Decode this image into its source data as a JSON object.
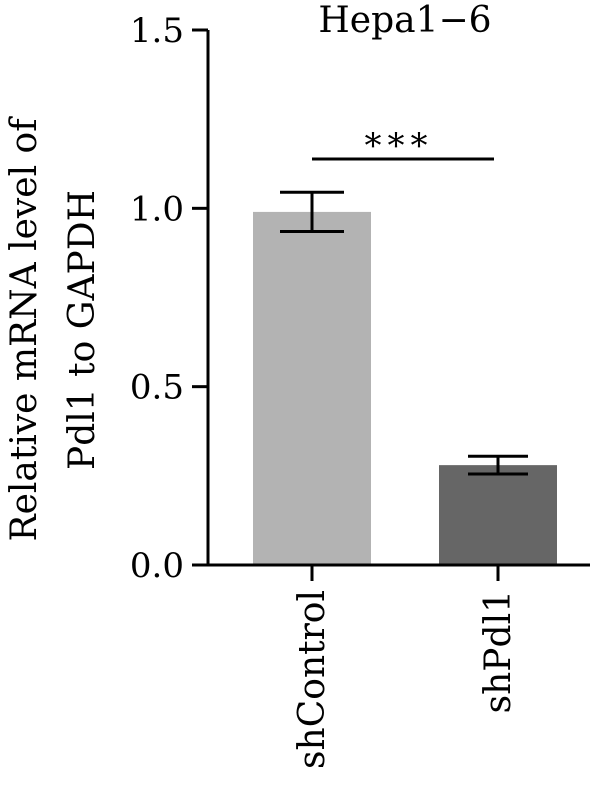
{
  "chart_data": {
    "type": "bar",
    "title": "Hepa1−6",
    "ylabel_lines": [
      "Relative mRNA level of",
      "Pdl1 to GAPDH"
    ],
    "xlabel": "",
    "categories": [
      "shControl",
      "shPdl1"
    ],
    "values": [
      0.99,
      0.28
    ],
    "error": [
      0.055,
      0.025
    ],
    "colors": [
      "#b3b3b3",
      "#666666"
    ],
    "ylim": [
      0,
      1.5
    ],
    "yticks": [
      "0.0",
      "0.5",
      "1.0",
      "1.5"
    ],
    "yticks_values": [
      0,
      0.5,
      1.0,
      1.5
    ],
    "significance": {
      "label": "***",
      "between": [
        0,
        1
      ]
    },
    "grid": false,
    "legend": "none"
  }
}
